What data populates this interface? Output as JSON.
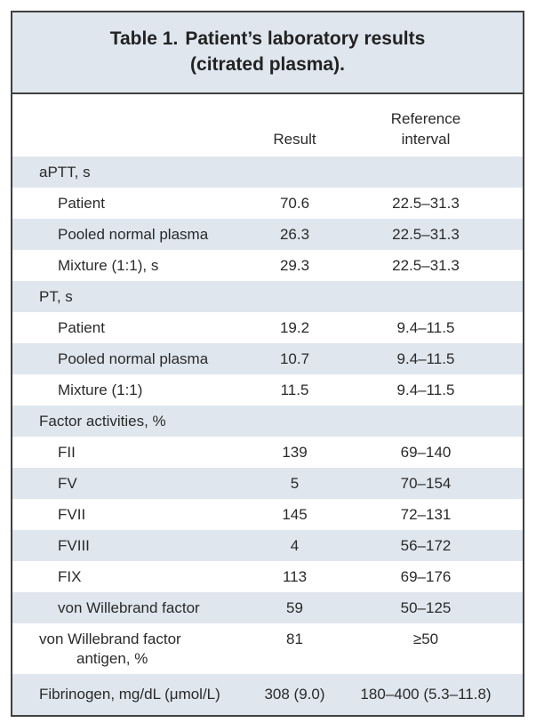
{
  "table": {
    "title_label": "Table 1.",
    "title_line1": "Patient’s laboratory results",
    "title_line2": "(citrated plasma).",
    "col_result": "Result",
    "col_reference_line1": "Reference",
    "col_reference_line2": "interval"
  },
  "rows": [
    {
      "label": "aPTT, s",
      "result": "",
      "reference": ""
    },
    {
      "label": "Patient",
      "result": "70.6",
      "reference": "22.5–31.3"
    },
    {
      "label": "Pooled normal plasma",
      "result": "26.3",
      "reference": "22.5–31.3"
    },
    {
      "label": "Mixture (1:1), s",
      "result": "29.3",
      "reference": "22.5–31.3"
    },
    {
      "label": "PT, s",
      "result": "",
      "reference": ""
    },
    {
      "label": "Patient",
      "result": "19.2",
      "reference": "9.4–11.5"
    },
    {
      "label": "Pooled normal plasma",
      "result": "10.7",
      "reference": "9.4–11.5"
    },
    {
      "label": "Mixture (1:1)",
      "result": "11.5",
      "reference": "9.4–11.5"
    },
    {
      "label": "Factor activities, %",
      "result": "",
      "reference": ""
    },
    {
      "label": "FII",
      "result": "139",
      "reference": "69–140"
    },
    {
      "label": "FV",
      "result": "5",
      "reference": "70–154"
    },
    {
      "label": "FVII",
      "result": "145",
      "reference": "72–131"
    },
    {
      "label": "FVIII",
      "result": "4",
      "reference": "56–172"
    },
    {
      "label": "FIX",
      "result": "113",
      "reference": "69–176"
    },
    {
      "label": "von Willebrand factor",
      "result": "59",
      "reference": "50–125"
    },
    {
      "label_line1": "von Willebrand factor",
      "label_line2": "antigen, %",
      "result": "81",
      "reference": "≥50"
    },
    {
      "label": "Fibrinogen, mg/dL (μmol/L)",
      "result": "308 (9.0)",
      "reference": "180–400 (5.3–11.8)"
    }
  ],
  "colors": {
    "header_fill": "#dfe6ee",
    "border": "#404040",
    "text": "#2a2a2a"
  }
}
